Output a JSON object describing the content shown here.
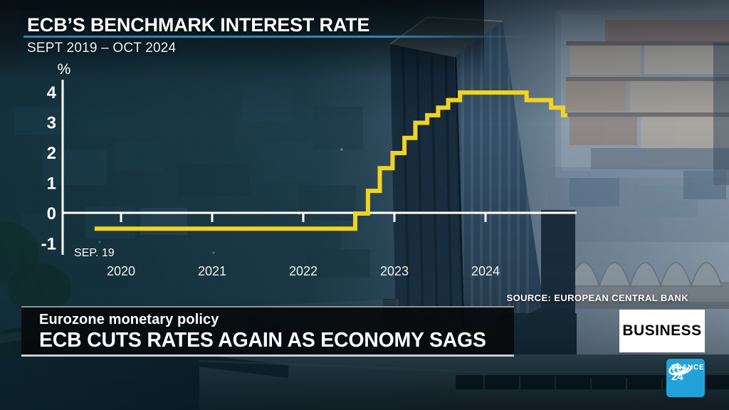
{
  "header": {
    "title": "ECB’S BENCHMARK INTEREST RATE",
    "subtitle": "SEPT 2019 – OCT 2024"
  },
  "chart_data": {
    "type": "line",
    "step": true,
    "title": "ECB’S BENCHMARK INTEREST RATE",
    "subtitle": "SEPT 2019 – OCT 2024",
    "ylabel": "%",
    "yticks": [
      4,
      3,
      2,
      1,
      0,
      -1
    ],
    "ylim": [
      -1.35,
      4.45
    ],
    "xticks": [
      "2020",
      "2021",
      "2022",
      "2023",
      "2024"
    ],
    "xlim_years": [
      2019.35,
      2025.0
    ],
    "start_label": "SEP. 19",
    "line_color": "#f2d31f",
    "grid": false,
    "legend": "none",
    "steps": [
      {
        "date": "Sep 2019",
        "year": 2019.71,
        "value": -0.5
      },
      {
        "date": "Jul 2022",
        "year": 2022.57,
        "value": 0
      },
      {
        "date": "Sep 2022",
        "year": 2022.71,
        "value": 0.75
      },
      {
        "date": "Nov 2022",
        "year": 2022.84,
        "value": 1.5
      },
      {
        "date": "Dec 2022",
        "year": 2022.98,
        "value": 2.0
      },
      {
        "date": "Feb 2023",
        "year": 2023.11,
        "value": 2.5
      },
      {
        "date": "Mar 2023",
        "year": 2023.23,
        "value": 3.0
      },
      {
        "date": "May 2023",
        "year": 2023.36,
        "value": 3.25
      },
      {
        "date": "Jun 2023",
        "year": 2023.48,
        "value": 3.5
      },
      {
        "date": "Aug 2023",
        "year": 2023.59,
        "value": 3.75
      },
      {
        "date": "Sep 2023",
        "year": 2023.72,
        "value": 4.0
      },
      {
        "date": "Jun 2024",
        "year": 2024.45,
        "value": 3.75
      },
      {
        "date": "Sep 2024",
        "year": 2024.72,
        "value": 3.5
      },
      {
        "date": "Oct 2024",
        "year": 2024.85,
        "value": 3.25
      }
    ],
    "end_year": 2024.9
  },
  "source": {
    "label": "SOURCE: EUROPEAN CENTRAL BANK"
  },
  "lower_third": {
    "kicker": "Eurozone monetary policy",
    "headline": "ECB CUTS RATES AGAIN AS ECONOMY SAGS",
    "badge": "BUSINESS"
  },
  "channel_logo": {
    "line1": "FRANCE",
    "line2": "24"
  },
  "colors": {
    "accent_underline": "#2e86b4",
    "rate_line_yellow": "#f2d31f",
    "logo_blue": "#21a3d9",
    "badge_bg": "#ffffff",
    "badge_text": "#050505"
  }
}
